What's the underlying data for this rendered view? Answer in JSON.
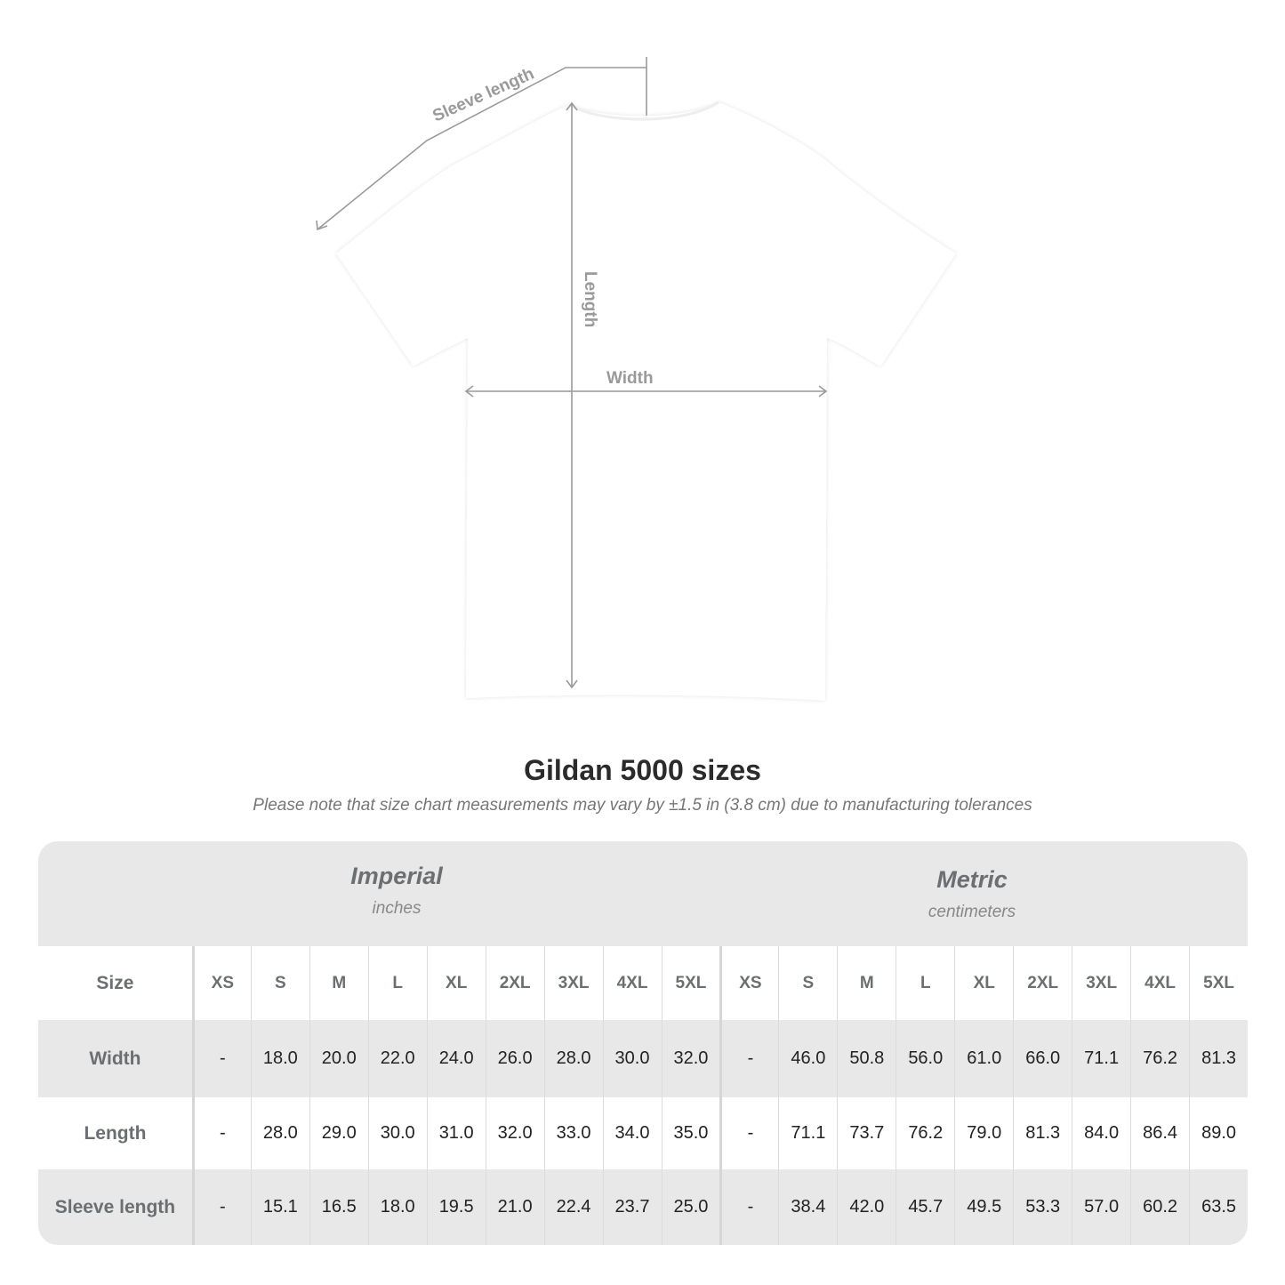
{
  "diagram": {
    "labels": {
      "sleeve": "Sleeve length",
      "length": "Length",
      "width": "Width"
    },
    "colors": {
      "shirt": "#ffffff",
      "measure_lines": "#9a9a9a"
    }
  },
  "title": "Gildan 5000 sizes",
  "note": "Please note that size chart measurements may vary by ±1.5 in (3.8 cm) due to manufacturing tolerances",
  "table": {
    "imperial": {
      "name": "Imperial",
      "unit": "inches"
    },
    "metric": {
      "name": "Metric",
      "unit": "centimeters"
    },
    "size_label": "Size",
    "sizes": [
      "XS",
      "S",
      "M",
      "L",
      "XL",
      "2XL",
      "3XL",
      "4XL",
      "5XL"
    ],
    "rows": [
      {
        "label": "Width",
        "imperial": [
          "-",
          "18.0",
          "20.0",
          "22.0",
          "24.0",
          "26.0",
          "28.0",
          "30.0",
          "32.0"
        ],
        "metric": [
          "-",
          "46.0",
          "50.8",
          "56.0",
          "61.0",
          "66.0",
          "71.1",
          "76.2",
          "81.3"
        ]
      },
      {
        "label": "Length",
        "imperial": [
          "-",
          "28.0",
          "29.0",
          "30.0",
          "31.0",
          "32.0",
          "33.0",
          "34.0",
          "35.0"
        ],
        "metric": [
          "-",
          "71.1",
          "73.7",
          "76.2",
          "79.0",
          "81.3",
          "84.0",
          "86.4",
          "89.0"
        ]
      },
      {
        "label": "Sleeve length",
        "imperial": [
          "-",
          "15.1",
          "16.5",
          "18.0",
          "19.5",
          "21.0",
          "22.4",
          "23.7",
          "25.0"
        ],
        "metric": [
          "-",
          "38.4",
          "42.0",
          "45.7",
          "49.5",
          "53.3",
          "57.0",
          "60.2",
          "63.5"
        ]
      }
    ]
  }
}
